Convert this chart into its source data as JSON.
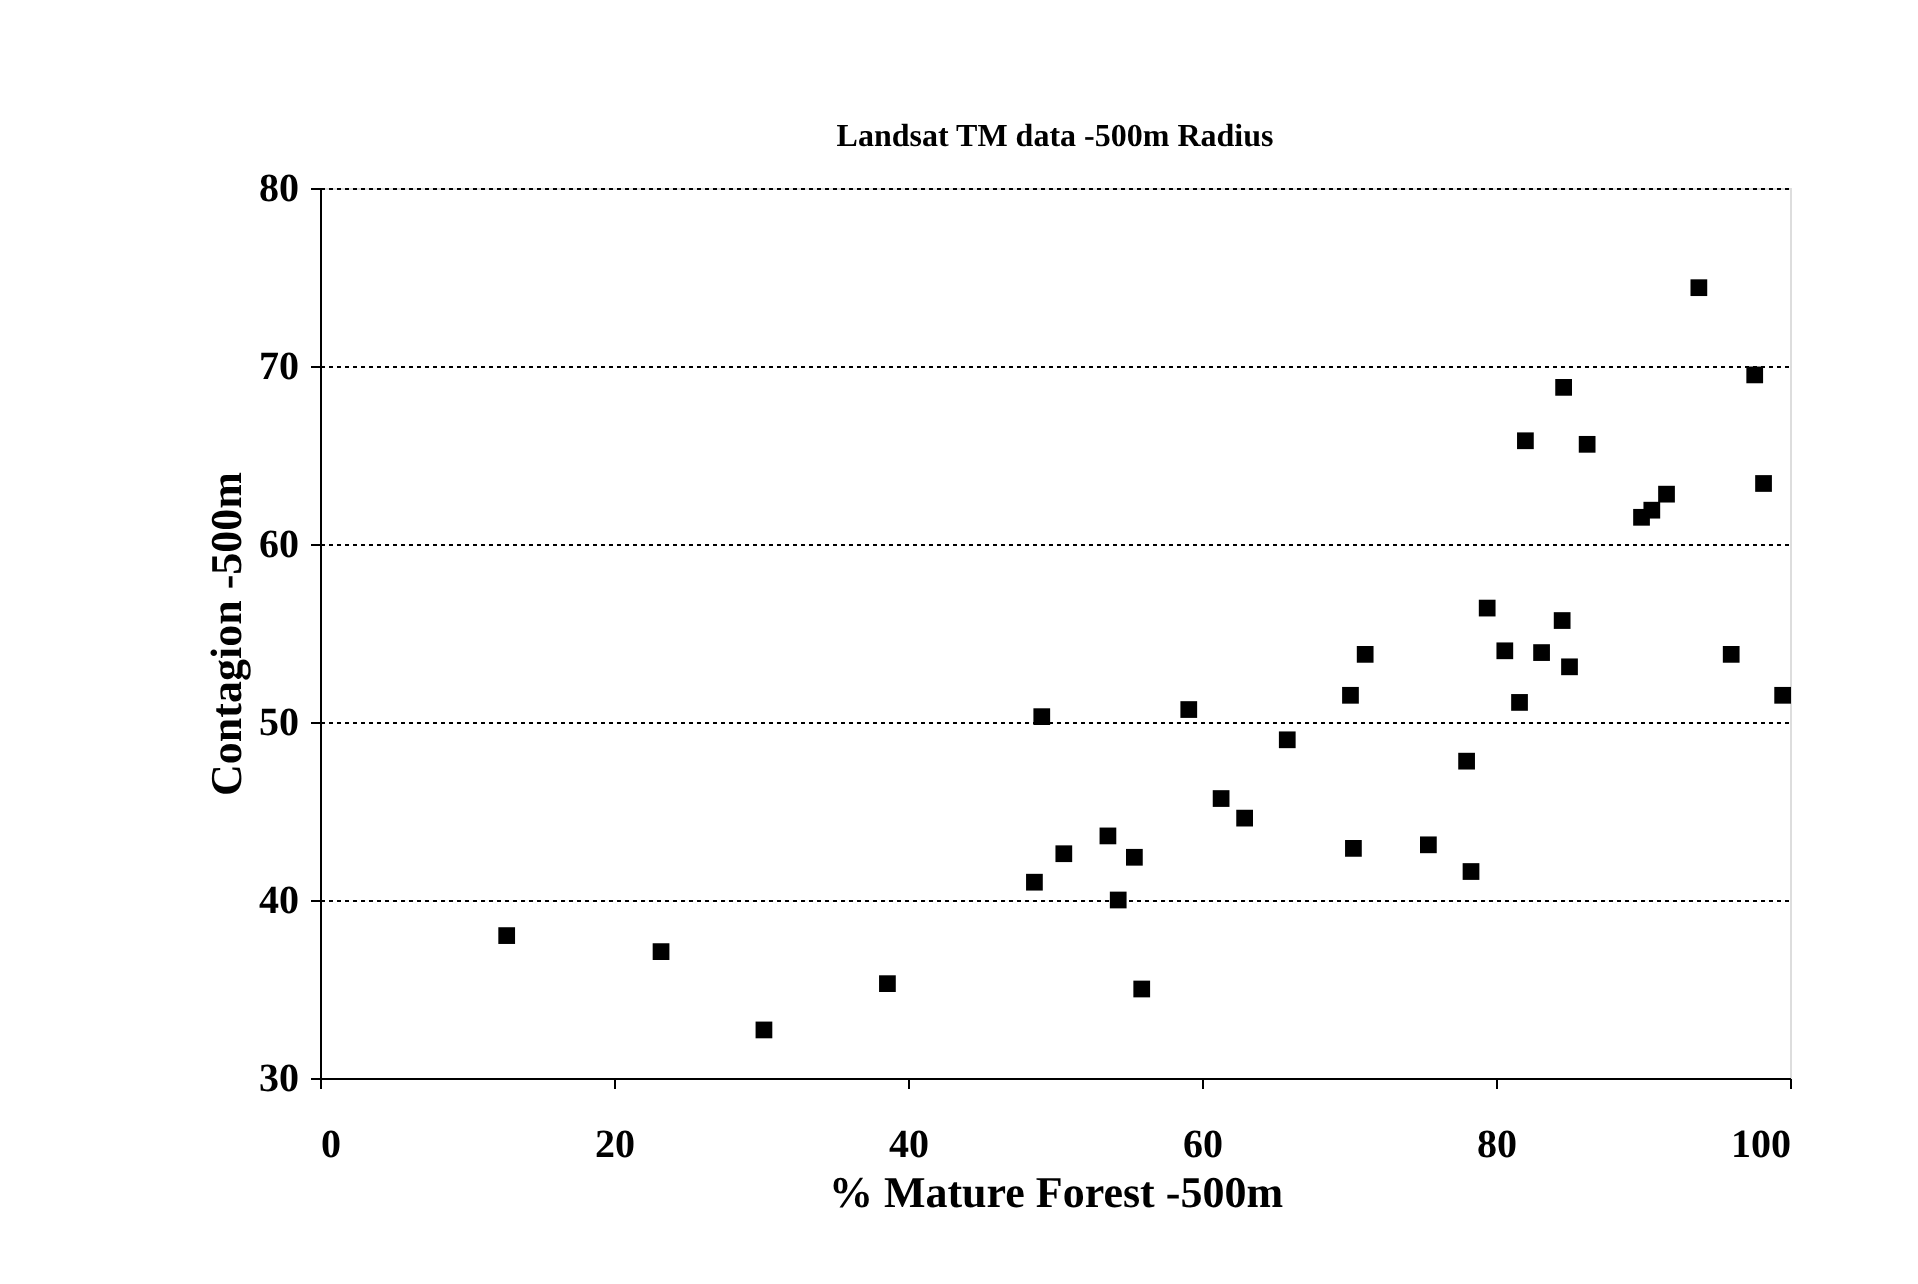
{
  "chart_data": {
    "type": "scatter",
    "title": "Landsat TM data -500m Radius",
    "xlabel": "% Mature Forest -500m",
    "ylabel": "Contagion -500m",
    "x": [
      93.8,
      97.6,
      84.6,
      82.0,
      86.2,
      98.2,
      91.6,
      90.6,
      89.9,
      79.4,
      84.5,
      71.1,
      80.6,
      83.1,
      85.0,
      96.0,
      70.1,
      81.6,
      99.5,
      49.1,
      59.1,
      65.8,
      78.0,
      61.3,
      62.9,
      53.6,
      50.6,
      55.4,
      70.3,
      75.4,
      78.3,
      48.6,
      54.3,
      12.7,
      23.2,
      30.2,
      38.6,
      55.9
    ],
    "values": [
      74.4,
      69.5,
      68.8,
      65.8,
      65.6,
      63.4,
      62.8,
      61.9,
      61.5,
      56.4,
      55.7,
      53.8,
      54.0,
      53.9,
      53.1,
      53.8,
      51.5,
      51.1,
      51.5,
      50.3,
      50.7,
      49.0,
      47.8,
      45.7,
      44.6,
      43.6,
      42.6,
      42.4,
      42.9,
      43.1,
      41.6,
      41.0,
      40.0,
      38.0,
      37.1,
      32.7,
      35.3,
      35.0
    ],
    "color": "#000000",
    "marker": "square",
    "xlim": [
      0,
      100
    ],
    "xticks": [
      0,
      20,
      40,
      60,
      80,
      100
    ],
    "ylim": [
      30,
      80
    ],
    "yticks": [
      30,
      40,
      50,
      60,
      70,
      80
    ],
    "grid": "y"
  }
}
